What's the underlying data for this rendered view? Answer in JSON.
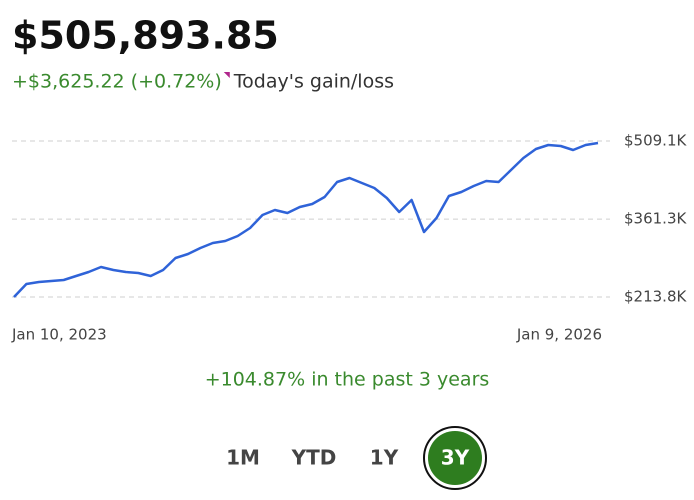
{
  "header": {
    "balance": "$505,893.85",
    "gain": "+$3,625.22 (+0.72%)",
    "gain_label": "Today's gain/loss"
  },
  "chart_data": {
    "type": "line",
    "categories": [
      "Jan 10, 2023",
      null,
      null,
      null,
      null,
      null,
      null,
      null,
      null,
      null,
      null,
      null,
      null,
      null,
      null,
      null,
      null,
      null,
      null,
      null,
      null,
      null,
      null,
      null,
      null,
      null,
      null,
      null,
      null,
      null,
      null,
      null,
      null,
      null,
      null,
      null,
      null,
      null,
      null,
      null,
      null,
      null,
      null,
      null,
      null,
      null,
      null,
      "Jan 9, 2026"
    ],
    "series": [
      {
        "color": "#2f63d8",
        "values": [
          213800,
          238400,
          242200,
          244100,
          246000,
          253500,
          261100,
          270600,
          264900,
          261100,
          259200,
          253500,
          264900,
          287600,
          295200,
          306500,
          316000,
          319800,
          329300,
          344400,
          369000,
          378500,
          372800,
          384200,
          389800,
          403100,
          431500,
          439100,
          429600,
          420100,
          401200,
          374700,
          397400,
          336800,
          363300,
          405000,
          412600,
          423900,
          433400,
          431500,
          454200,
          476900,
          494000,
          501500,
          499600,
          492100,
          501500,
          505300
        ]
      }
    ],
    "ylim": [
      208100,
      529900
    ],
    "yticks": [
      {
        "value": 509100,
        "label": "$509.1K"
      },
      {
        "value": 361300,
        "label": "$361.3K"
      },
      {
        "value": 213800,
        "label": "$213.8K"
      }
    ],
    "grid": true
  },
  "summary": "+104.87% in the past 3 years",
  "range_buttons": {
    "options": [
      "1M",
      "YTD",
      "1Y",
      "3Y"
    ],
    "selected_index": 3
  }
}
